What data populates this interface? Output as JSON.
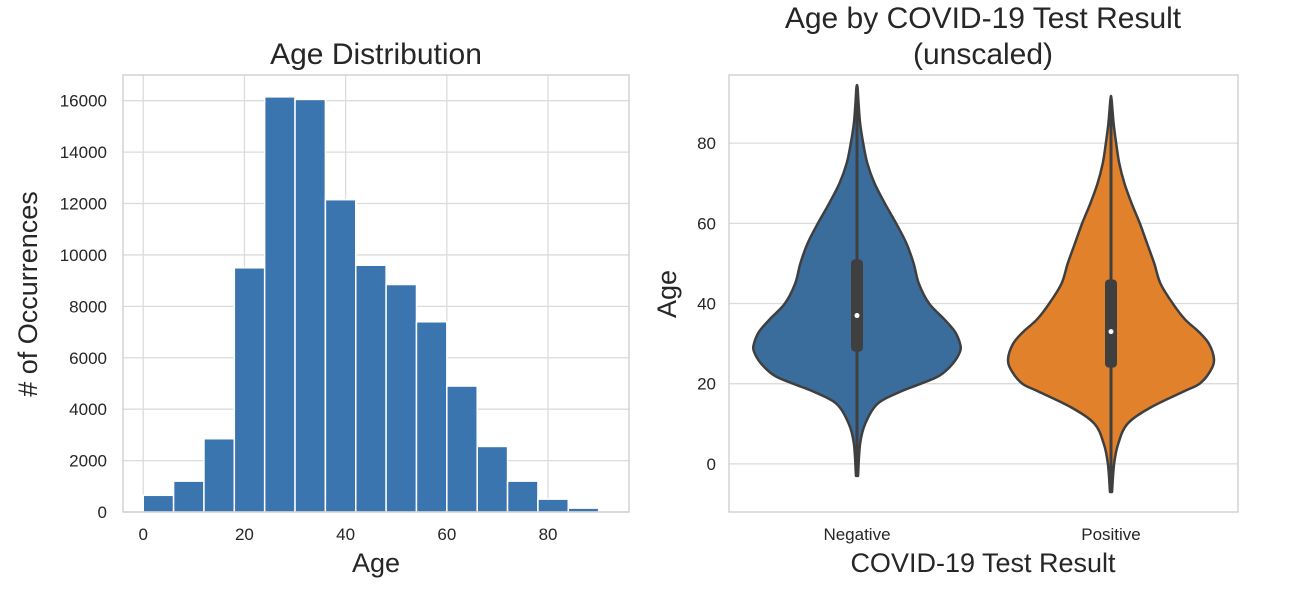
{
  "chart_data": [
    {
      "type": "bar",
      "title": "Age Distribution",
      "xlabel": "Age",
      "ylabel": "# of Occurrences",
      "xlim": [
        -4,
        96
      ],
      "ylim": [
        0,
        17000
      ],
      "xticks": [
        "0",
        "20",
        "40",
        "60",
        "80"
      ],
      "yticks": [
        "0",
        "2000",
        "4000",
        "6000",
        "8000",
        "10000",
        "12000",
        "14000",
        "16000"
      ],
      "bin_edges": [
        0,
        6,
        12,
        18,
        24,
        30,
        36,
        42,
        48,
        54,
        60,
        66,
        72,
        78,
        84,
        90
      ],
      "values": [
        650,
        1200,
        2850,
        9500,
        16150,
        16050,
        12150,
        9600,
        8850,
        7400,
        4900,
        2550,
        1200,
        500,
        150
      ],
      "color": "#3a75b0",
      "grid": true
    },
    {
      "type": "violin",
      "title": "Age by COVID-19 Test Result\n(unscaled)",
      "title_lines": [
        "Age by COVID-19 Test Result",
        "(unscaled)"
      ],
      "xlabel": "COVID-19 Test Result",
      "ylabel": "Age",
      "ylim": [
        -12,
        97
      ],
      "yticks": [
        "0",
        "20",
        "40",
        "60",
        "80"
      ],
      "categories": [
        "Negative",
        "Positive"
      ],
      "grid": true,
      "series": [
        {
          "name": "Negative",
          "color": "#3a6d9c",
          "min": -3,
          "q1": 28,
          "median": 37,
          "q3": 51,
          "max": 94,
          "width_profile": [
            [
              -3,
              0.01
            ],
            [
              5,
              0.03
            ],
            [
              10,
              0.08
            ],
            [
              15,
              0.2
            ],
            [
              18,
              0.42
            ],
            [
              20,
              0.62
            ],
            [
              22,
              0.8
            ],
            [
              25,
              0.93
            ],
            [
              28,
              1.0
            ],
            [
              30,
              1.0
            ],
            [
              33,
              0.95
            ],
            [
              36,
              0.85
            ],
            [
              40,
              0.7
            ],
            [
              45,
              0.6
            ],
            [
              50,
              0.55
            ],
            [
              55,
              0.48
            ],
            [
              60,
              0.38
            ],
            [
              65,
              0.27
            ],
            [
              70,
              0.17
            ],
            [
              75,
              0.1
            ],
            [
              80,
              0.06
            ],
            [
              85,
              0.03
            ],
            [
              90,
              0.015
            ],
            [
              94,
              0.005
            ]
          ]
        },
        {
          "name": "Positive",
          "color": "#e1812c",
          "min": -7,
          "q1": 24,
          "median": 33,
          "q3": 46,
          "max": 91,
          "width_profile": [
            [
              -7,
              0.01
            ],
            [
              0,
              0.03
            ],
            [
              5,
              0.07
            ],
            [
              10,
              0.16
            ],
            [
              14,
              0.38
            ],
            [
              18,
              0.7
            ],
            [
              20,
              0.86
            ],
            [
              23,
              0.96
            ],
            [
              26,
              1.0
            ],
            [
              30,
              0.95
            ],
            [
              33,
              0.85
            ],
            [
              36,
              0.72
            ],
            [
              40,
              0.6
            ],
            [
              45,
              0.48
            ],
            [
              50,
              0.42
            ],
            [
              55,
              0.35
            ],
            [
              60,
              0.28
            ],
            [
              65,
              0.2
            ],
            [
              70,
              0.13
            ],
            [
              75,
              0.08
            ],
            [
              80,
              0.05
            ],
            [
              85,
              0.025
            ],
            [
              91,
              0.005
            ]
          ]
        }
      ]
    }
  ]
}
